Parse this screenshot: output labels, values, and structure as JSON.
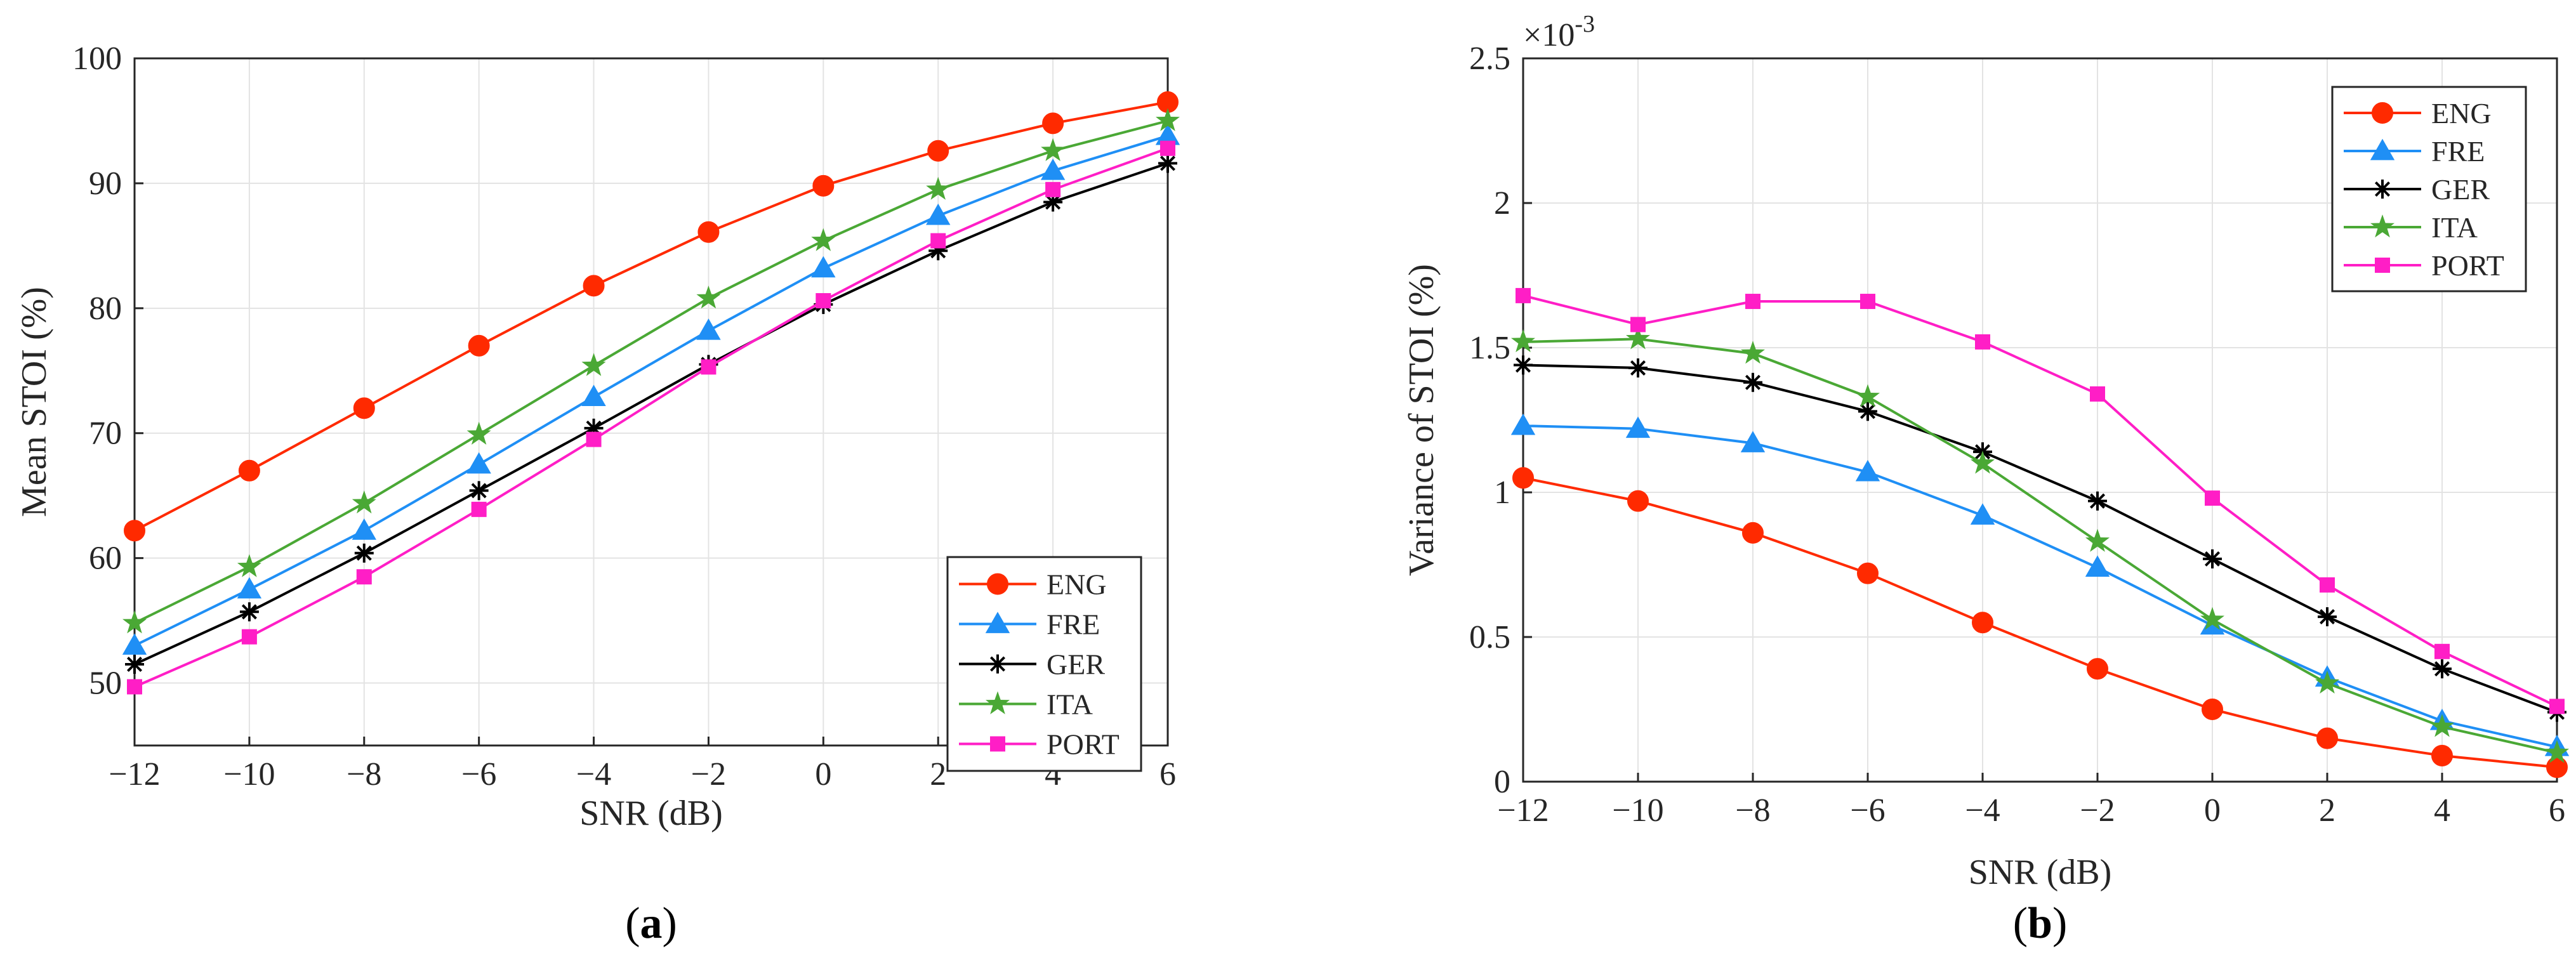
{
  "chart_data": [
    {
      "type": "line",
      "panel": "a",
      "caption": "a",
      "xlabel": "SNR (dB)",
      "ylabel": "Mean STOI (%)",
      "x": [
        -12,
        -10,
        -8,
        -6,
        -4,
        -2,
        0,
        2,
        4,
        6
      ],
      "xticks": [
        "−12",
        "−10",
        "−8",
        "−6",
        "−4",
        "−2",
        "0",
        "2",
        "4",
        "6"
      ],
      "yticks": [
        "50",
        "60",
        "70",
        "80",
        "90",
        "100"
      ],
      "xlim": [
        -12,
        6
      ],
      "ylim": [
        45,
        100
      ],
      "grid": true,
      "legend_position": "bottom-right",
      "series": [
        {
          "name": "ENG",
          "color": "#ff2a00",
          "marker": "circle",
          "values": [
            62.2,
            67.0,
            72.0,
            77.0,
            81.8,
            86.1,
            89.8,
            92.6,
            94.8,
            96.5
          ]
        },
        {
          "name": "FRE",
          "color": "#1f8ff5",
          "marker": "triangle",
          "values": [
            53.0,
            57.5,
            62.2,
            67.5,
            72.9,
            78.2,
            83.2,
            87.4,
            91.0,
            93.8
          ]
        },
        {
          "name": "GER",
          "color": "#000000",
          "marker": "asterisk",
          "values": [
            51.5,
            55.7,
            60.4,
            65.4,
            70.4,
            75.5,
            80.3,
            84.6,
            88.5,
            91.6
          ]
        },
        {
          "name": "ITA",
          "color": "#4aa835",
          "marker": "star",
          "values": [
            54.8,
            59.3,
            64.4,
            69.9,
            75.4,
            80.8,
            85.4,
            89.5,
            92.6,
            95.0
          ]
        },
        {
          "name": "PORT",
          "color": "#ff1ec6",
          "marker": "square",
          "values": [
            49.7,
            53.7,
            58.5,
            63.9,
            69.5,
            75.3,
            80.6,
            85.4,
            89.5,
            92.8
          ]
        }
      ]
    },
    {
      "type": "line",
      "panel": "b",
      "caption": "b",
      "xlabel": "SNR (dB)",
      "ylabel": "Variance of STOI (%)",
      "exponent_label": "×10",
      "exponent_power": "-3",
      "x": [
        -12,
        -10,
        -8,
        -6,
        -4,
        -2,
        0,
        2,
        4,
        6
      ],
      "xticks": [
        "−12",
        "−10",
        "−8",
        "−6",
        "−4",
        "−2",
        "0",
        "2",
        "4",
        "6"
      ],
      "yticks": [
        "0",
        "0.5",
        "1",
        "1.5",
        "2",
        "2.5"
      ],
      "ytick_values": [
        0,
        0.5,
        1,
        1.5,
        2,
        2.5
      ],
      "xlim": [
        -12,
        6
      ],
      "ylim": [
        0,
        2.5
      ],
      "grid": true,
      "legend_position": "top-right",
      "series": [
        {
          "name": "ENG",
          "color": "#ff2a00",
          "marker": "circle",
          "values": [
            1.05,
            0.97,
            0.86,
            0.72,
            0.55,
            0.39,
            0.25,
            0.15,
            0.09,
            0.05
          ]
        },
        {
          "name": "FRE",
          "color": "#1f8ff5",
          "marker": "triangle",
          "values": [
            1.23,
            1.22,
            1.17,
            1.07,
            0.92,
            0.74,
            0.54,
            0.36,
            0.21,
            0.12
          ]
        },
        {
          "name": "GER",
          "color": "#000000",
          "marker": "asterisk",
          "values": [
            1.44,
            1.43,
            1.38,
            1.28,
            1.14,
            0.97,
            0.77,
            0.57,
            0.39,
            0.24
          ]
        },
        {
          "name": "ITA",
          "color": "#4aa835",
          "marker": "star",
          "values": [
            1.52,
            1.53,
            1.48,
            1.33,
            1.1,
            0.83,
            0.56,
            0.34,
            0.19,
            0.1
          ]
        },
        {
          "name": "PORT",
          "color": "#ff1ec6",
          "marker": "square",
          "values": [
            1.68,
            1.58,
            1.66,
            1.66,
            1.52,
            1.34,
            0.98,
            0.68,
            0.45,
            0.26
          ]
        }
      ]
    }
  ]
}
